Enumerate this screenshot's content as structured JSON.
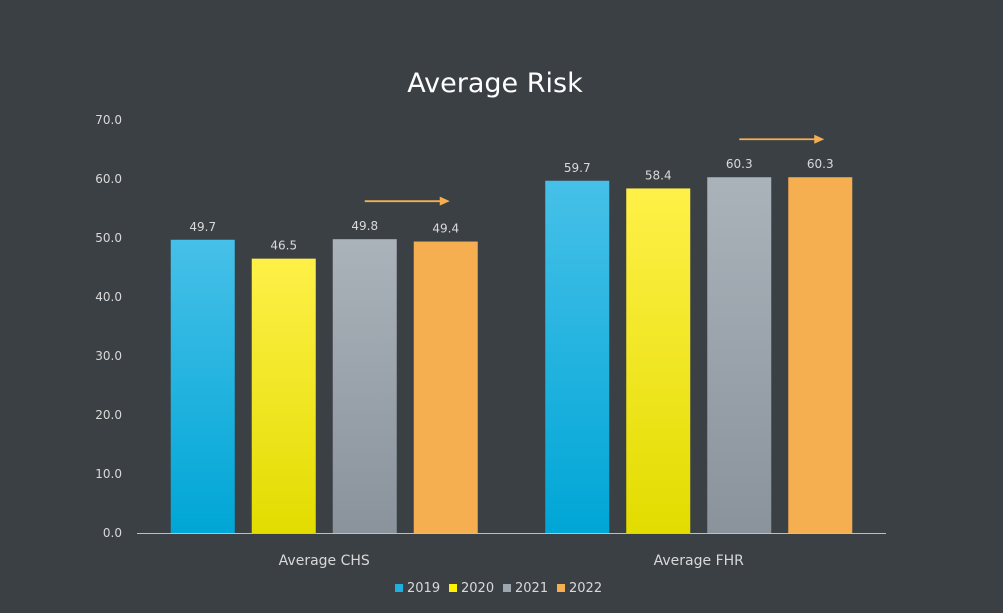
{
  "chart_data": {
    "type": "bar",
    "title": "Average Risk",
    "categories": [
      "Average CHS",
      "Average FHR"
    ],
    "series": [
      {
        "name": "2019",
        "values": [
          49.7,
          59.7
        ],
        "color": "#1fb0e0",
        "color_top": "#46c0e8",
        "color_bottom": "#00a6d6"
      },
      {
        "name": "2020",
        "values": [
          46.5,
          58.4
        ],
        "color": "#fff200",
        "color_top": "#fff048",
        "color_bottom": "#e3dc00"
      },
      {
        "name": "2021",
        "values": [
          49.8,
          60.3
        ],
        "color": "#9ea6ae",
        "color_top": "#aab2ba",
        "color_bottom": "#8a939b"
      },
      {
        "name": "2022",
        "values": [
          49.4,
          60.3
        ],
        "color": "#f5ae50",
        "color_top": "#f5ae50",
        "color_bottom": "#f5ae50"
      }
    ],
    "ylim": [
      0,
      70
    ],
    "yticks": [
      "0.0",
      "10.0",
      "20.0",
      "30.0",
      "40.0",
      "50.0",
      "60.0",
      "70.0"
    ],
    "data_labels": [
      [
        "49.7",
        "59.7"
      ],
      [
        "46.5",
        "58.4"
      ],
      [
        "49.8",
        "60.3"
      ],
      [
        "49.4",
        "60.3"
      ]
    ],
    "grid": false,
    "legend_position": "bottom",
    "annotations": [
      {
        "type": "arrow",
        "category": "Average CHS",
        "color": "#f5ae50"
      },
      {
        "type": "arrow",
        "category": "Average FHR",
        "color": "#f5ae50"
      }
    ],
    "xlabel": "",
    "ylabel": ""
  },
  "colors": {
    "background": "#3b4045",
    "axis": "#bfbfbf",
    "text": "#d9d9d9",
    "title": "#ffffff"
  }
}
